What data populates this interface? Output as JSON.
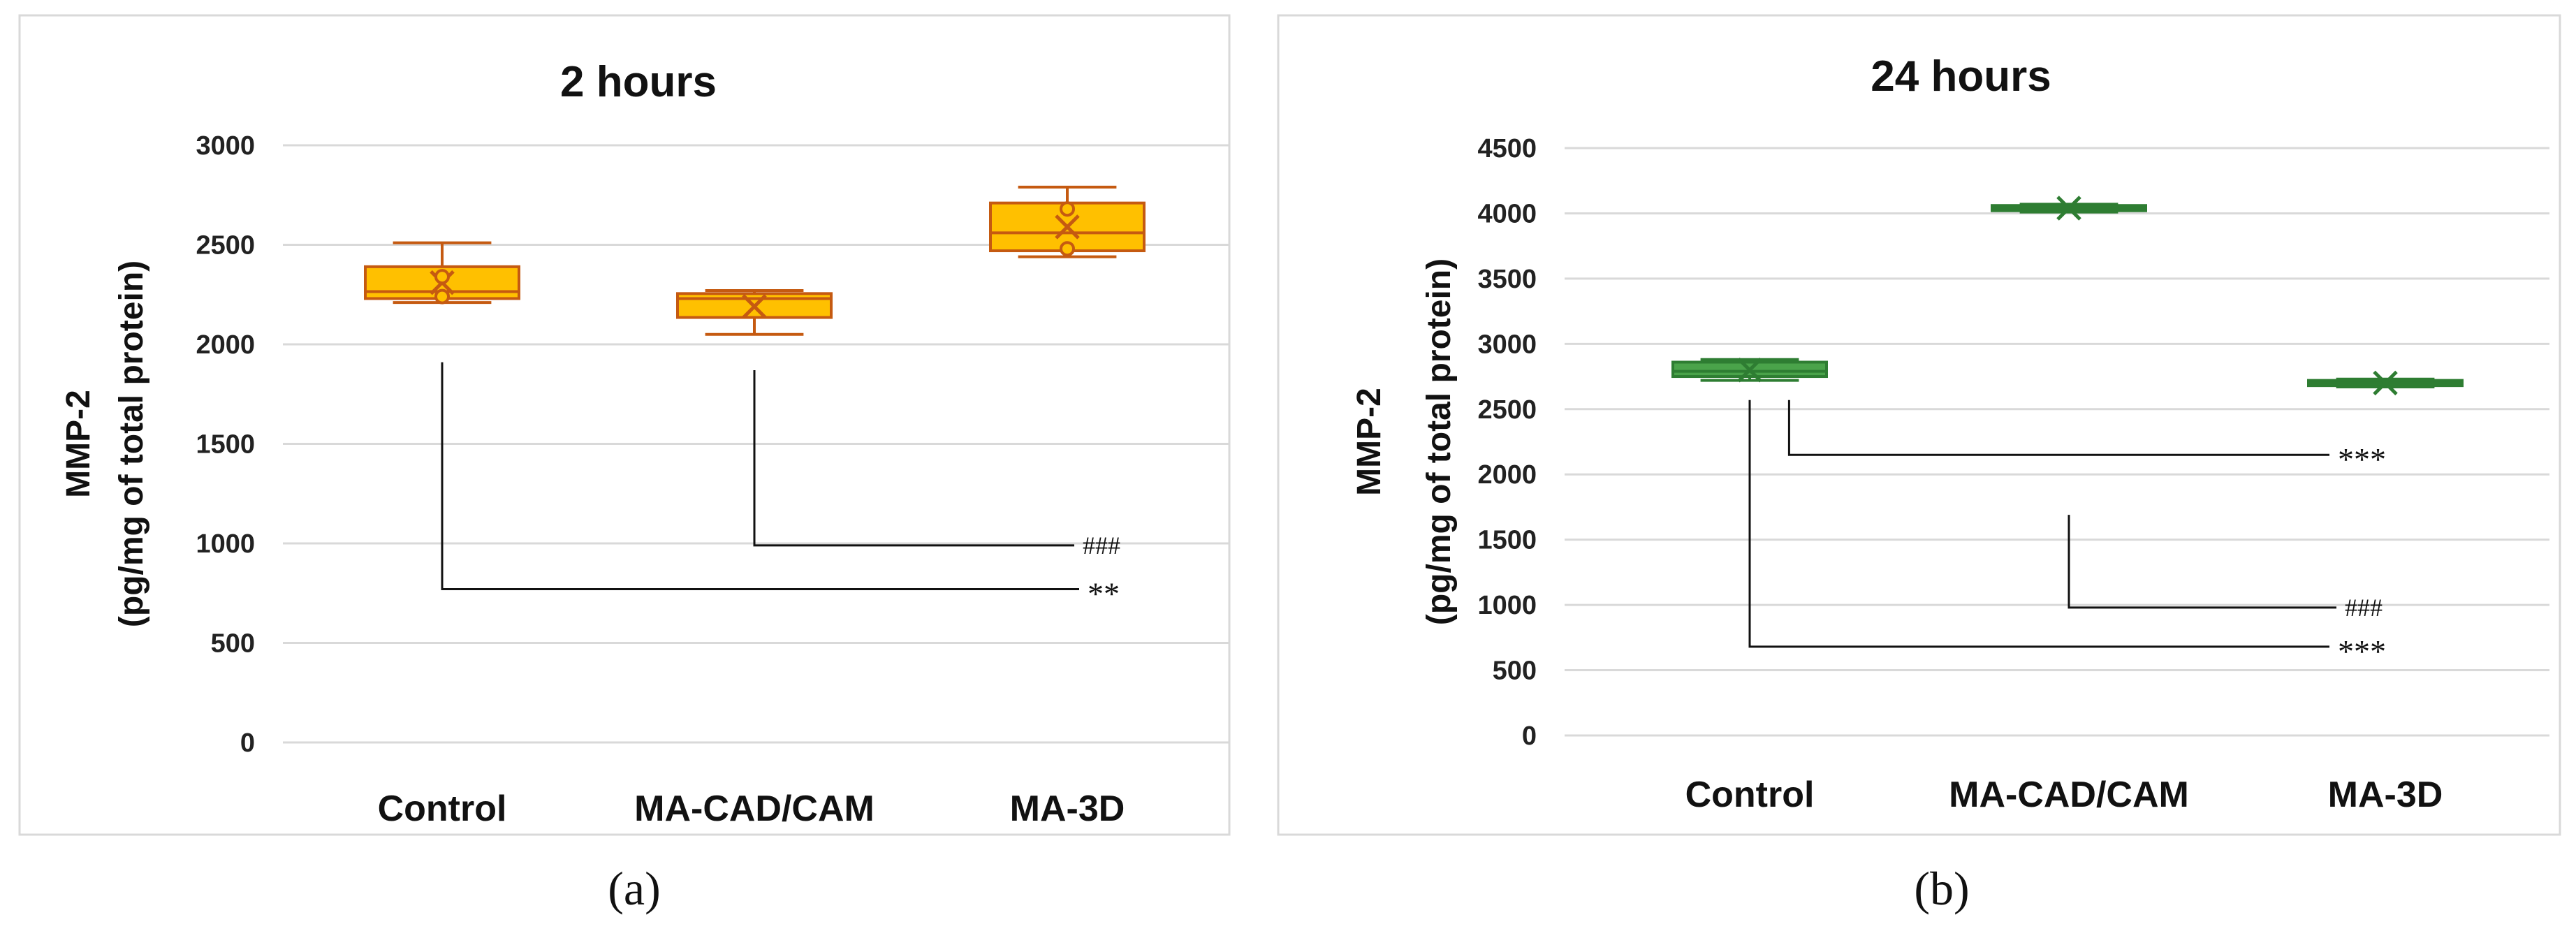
{
  "chart_data": [
    {
      "type": "box",
      "title": "2 hours",
      "caption": "(a)",
      "ylabel_line1": "MMP-2",
      "ylabel_line2": "(pg/mg of total protein)",
      "ylim": [
        0,
        3000
      ],
      "yticks": [
        "0",
        "500",
        "1000",
        "1500",
        "2000",
        "2500",
        "3000"
      ],
      "categories": [
        "Control",
        "MA-CAD/CAM",
        "MA-3D"
      ],
      "color": "#ffc000",
      "edge": "#c55a11",
      "boxes": [
        {
          "min": 2210,
          "q1": 2230,
          "median": 2265,
          "q3": 2390,
          "max": 2510,
          "mean": 2310,
          "points": [
            2240,
            2340
          ]
        },
        {
          "min": 2050,
          "q1": 2135,
          "median": 2230,
          "q3": 2255,
          "max": 2270,
          "mean": 2190,
          "points": []
        },
        {
          "min": 2440,
          "q1": 2470,
          "median": 2560,
          "q3": 2710,
          "max": 2790,
          "mean": 2590,
          "points": [
            2480,
            2680
          ]
        }
      ],
      "annotations": [
        {
          "label": "###",
          "from": 1,
          "to": 2,
          "top": 1870,
          "level": 990,
          "style": "hash"
        },
        {
          "label": "**",
          "from": 0,
          "to": 2,
          "top": 1910,
          "level": 770,
          "style": "star"
        }
      ]
    },
    {
      "type": "box",
      "title": "24 hours",
      "caption": "(b)",
      "ylabel_line1": "MMP-2",
      "ylabel_line2": "(pg/mg of total protein)",
      "ylim": [
        0,
        4500
      ],
      "yticks": [
        "0",
        "500",
        "1000",
        "1500",
        "2000",
        "2500",
        "3000",
        "3500",
        "4000",
        "4500"
      ],
      "categories": [
        "Control",
        "MA-CAD/CAM",
        "MA-3D"
      ],
      "color": "#4aa34a",
      "edge": "#2e7d32",
      "boxes": [
        {
          "min": 2720,
          "q1": 2750,
          "median": 2790,
          "q3": 2860,
          "max": 2880,
          "mean": 2800,
          "points": []
        },
        {
          "min": 4010,
          "q1": 4020,
          "median": 4040,
          "q3": 4060,
          "max": 4070,
          "mean": 4040,
          "points": []
        },
        {
          "min": 2670,
          "q1": 2680,
          "median": 2700,
          "q3": 2720,
          "max": 2730,
          "mean": 2700,
          "points": []
        }
      ],
      "annotations": [
        {
          "label": "***",
          "from": 0,
          "to": 1,
          "top": 2570,
          "level": 2150,
          "style": "star",
          "xoff": 0.04
        },
        {
          "label": "###",
          "from": 1,
          "to": 2,
          "top": 1690,
          "level": 980,
          "style": "hash"
        },
        {
          "label": "***",
          "from": 0,
          "to": 2,
          "top": 2570,
          "level": 680,
          "style": "star"
        }
      ]
    }
  ]
}
